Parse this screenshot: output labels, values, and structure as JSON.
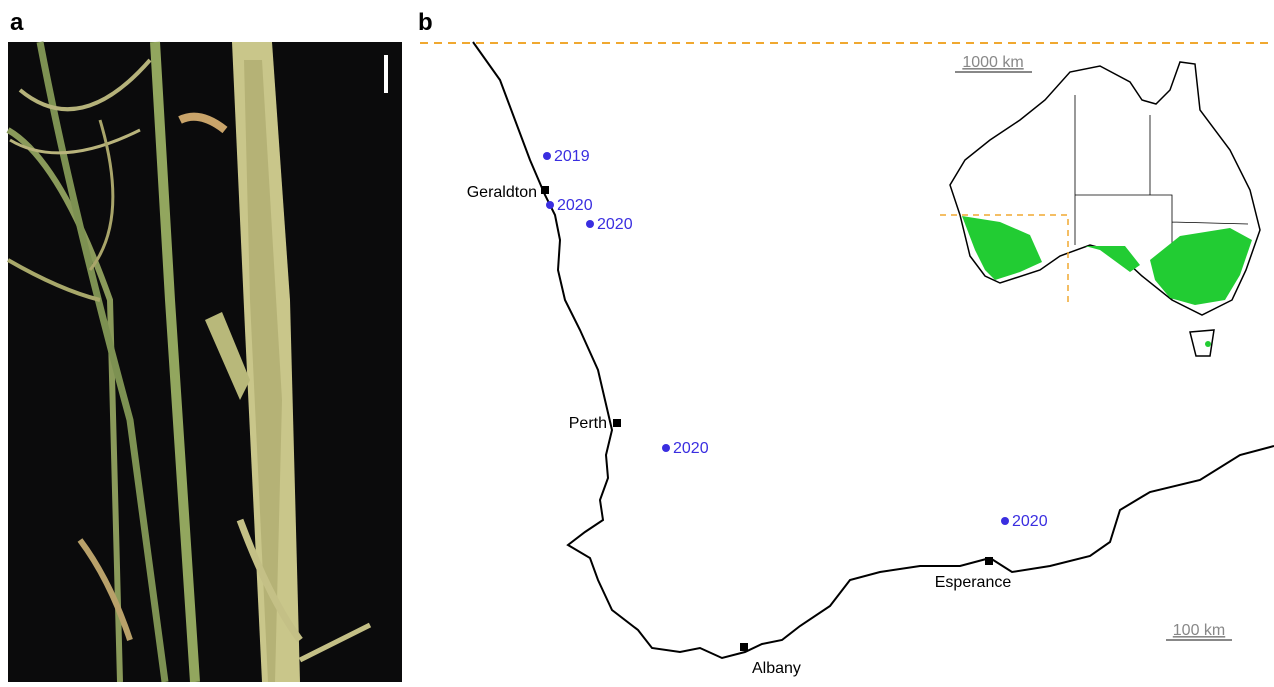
{
  "panel_a": {
    "label": "a"
  },
  "panel_b": {
    "label": "b",
    "towns": [
      {
        "name": "Geraldton"
      },
      {
        "name": "Perth"
      },
      {
        "name": "Esperance"
      },
      {
        "name": "Albany"
      }
    ],
    "sites": [
      {
        "year": "2019"
      },
      {
        "year": "2020"
      },
      {
        "year": "2020"
      },
      {
        "year": "2020"
      },
      {
        "year": "2020"
      }
    ],
    "scale_main": "100 km",
    "scale_inset": "1000 km"
  }
}
